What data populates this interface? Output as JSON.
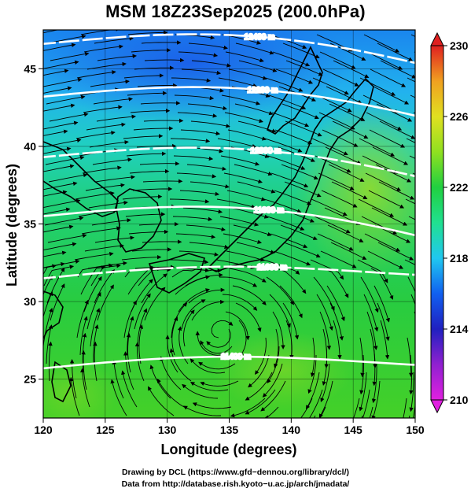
{
  "title": "MSM 18Z23Sep2025 (200.0hPa)",
  "x_axis": {
    "label": "Longitude (degrees)",
    "ticks": [
      "120",
      "125",
      "130",
      "135",
      "140",
      "145",
      "150"
    ],
    "range": [
      120,
      150
    ]
  },
  "y_axis": {
    "label": "Latitude  (degrees)",
    "ticks": [
      "25",
      "30",
      "35",
      "40",
      "45"
    ],
    "range": [
      22.5,
      47.5
    ]
  },
  "colorbar": {
    "ticks": [
      "210",
      "214",
      "218",
      "222",
      "226",
      "230"
    ],
    "range": [
      210,
      230
    ],
    "colors": [
      "#e020e0",
      "#9020d0",
      "#2020c0",
      "#1060f0",
      "#20c8f0",
      "#20e090",
      "#20d040",
      "#90e020",
      "#e0e020",
      "#f0a020",
      "#f05020",
      "#e02020"
    ]
  },
  "contours": [
    {
      "label": "12400 m",
      "lat": 46.6
    },
    {
      "label": "12200 m",
      "lat": 43.2
    },
    {
      "label": "12000 m",
      "lat": 39.3
    },
    {
      "label": "11800 m",
      "lat": 35.5
    },
    {
      "label": "11600 m",
      "lat": 31.5
    },
    {
      "label": "11400 m",
      "lat": 25.7
    }
  ],
  "credits": {
    "line1": "Drawing by DCL (https://www.gfd−dennou.org/library/dcl/)",
    "line2": "Data from http://database.rish.kyoto−u.ac.jp/arch/jmadata/"
  }
}
